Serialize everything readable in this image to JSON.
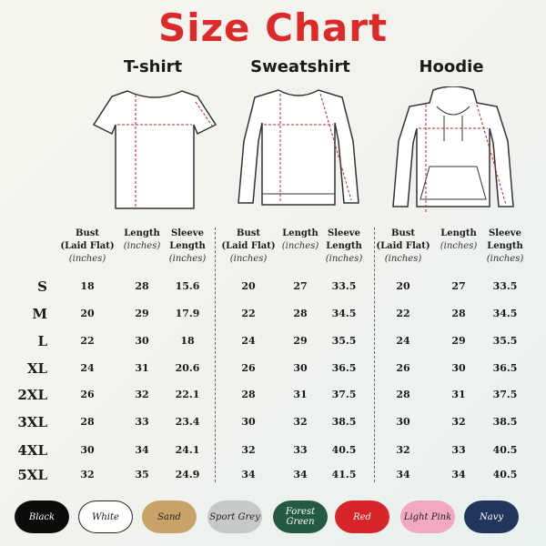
{
  "title": "Size Chart",
  "garments": [
    {
      "name": "T-shirt"
    },
    {
      "name": "Sweatshirt"
    },
    {
      "name": "Hoodie"
    }
  ],
  "headers": {
    "bust": "Bust",
    "bust2": "(Laid Flat)",
    "length": "Length",
    "sleeve": "Sleeve",
    "sleeve2": "Length",
    "unit": "(inches)"
  },
  "sizes": [
    "S",
    "M",
    "L",
    "XL",
    "2XL",
    "3XL",
    "4XL",
    "5XL"
  ],
  "tshirt": [
    [
      "18",
      "28",
      "15.6"
    ],
    [
      "20",
      "29",
      "17.9"
    ],
    [
      "22",
      "30",
      "18"
    ],
    [
      "24",
      "31",
      "20.6"
    ],
    [
      "26",
      "32",
      "22.1"
    ],
    [
      "28",
      "33",
      "23.4"
    ],
    [
      "30",
      "34",
      "24.1"
    ],
    [
      "32",
      "35",
      "24.9"
    ]
  ],
  "sweatshirt": [
    [
      "20",
      "27",
      "33.5"
    ],
    [
      "22",
      "28",
      "34.5"
    ],
    [
      "24",
      "29",
      "35.5"
    ],
    [
      "26",
      "30",
      "36.5"
    ],
    [
      "28",
      "31",
      "37.5"
    ],
    [
      "30",
      "32",
      "38.5"
    ],
    [
      "32",
      "33",
      "40.5"
    ],
    [
      "34",
      "34",
      "41.5"
    ]
  ],
  "hoodie": [
    [
      "20",
      "27",
      "33.5"
    ],
    [
      "22",
      "28",
      "34.5"
    ],
    [
      "24",
      "29",
      "35.5"
    ],
    [
      "26",
      "30",
      "36.5"
    ],
    [
      "28",
      "31",
      "37.5"
    ],
    [
      "30",
      "32",
      "38.5"
    ],
    [
      "32",
      "33",
      "40.5"
    ],
    [
      "34",
      "34",
      "40.5"
    ]
  ],
  "colors": [
    {
      "name": "Black",
      "bg": "#0b0b0b",
      "fg": "#ffffff"
    },
    {
      "name": "White",
      "bg": "#ffffff",
      "fg": "#111111"
    },
    {
      "name": "Sand",
      "bg": "#c9a26a",
      "fg": "#222222"
    },
    {
      "name": "Sport Grey",
      "bg": "#c8c8c8",
      "fg": "#222222"
    },
    {
      "name": "Forest Green",
      "bg": "#245a43",
      "fg": "#ffffff"
    },
    {
      "name": "Red",
      "bg": "#d62428",
      "fg": "#ffffff"
    },
    {
      "name": "Light Pink",
      "bg": "#f2a9bf",
      "fg": "#222222"
    },
    {
      "name": "Navy",
      "bg": "#22355c",
      "fg": "#ffffff"
    }
  ]
}
